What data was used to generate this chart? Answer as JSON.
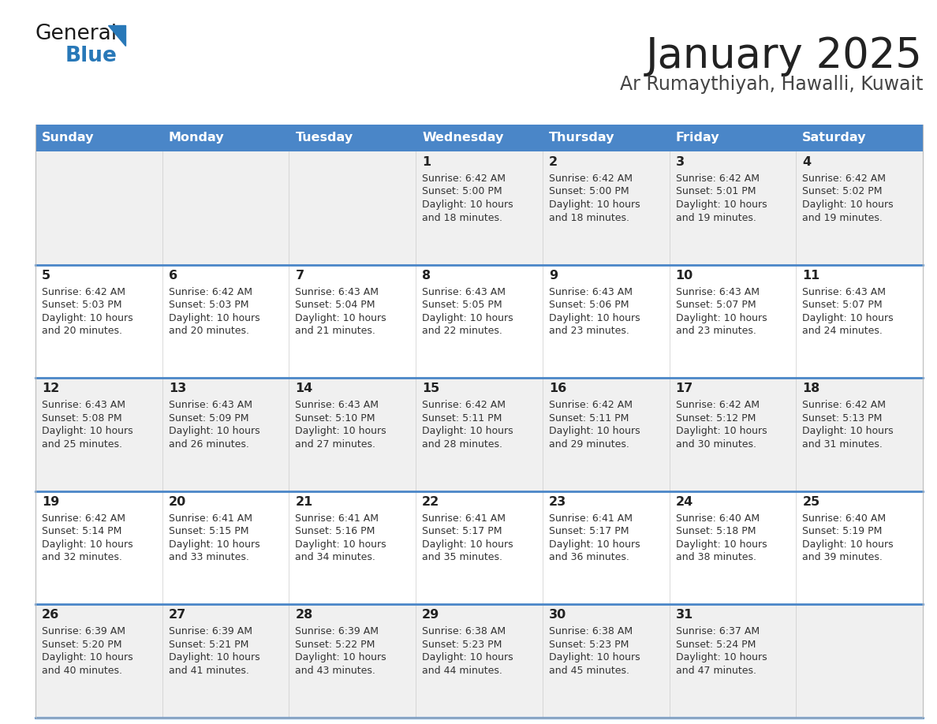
{
  "title": "January 2025",
  "subtitle": "Ar Rumaythiyah, Hawalli, Kuwait",
  "days_of_week": [
    "Sunday",
    "Monday",
    "Tuesday",
    "Wednesday",
    "Thursday",
    "Friday",
    "Saturday"
  ],
  "header_bg": "#4a86c8",
  "header_text": "#ffffff",
  "cell_bg_light": "#f0f0f0",
  "cell_bg_white": "#ffffff",
  "cell_border_color": "#4a86c8",
  "text_color": "#333333",
  "number_color": "#222222",
  "title_color": "#222222",
  "subtitle_color": "#444444",
  "logo_general_color": "#1a1a1a",
  "logo_blue_color": "#2878b8",
  "calendar_data": [
    {
      "day": 1,
      "col": 3,
      "row": 0,
      "sunrise": "6:42 AM",
      "sunset": "5:00 PM",
      "daylight_line1": "Daylight: 10 hours",
      "daylight_line2": "and 18 minutes."
    },
    {
      "day": 2,
      "col": 4,
      "row": 0,
      "sunrise": "6:42 AM",
      "sunset": "5:00 PM",
      "daylight_line1": "Daylight: 10 hours",
      "daylight_line2": "and 18 minutes."
    },
    {
      "day": 3,
      "col": 5,
      "row": 0,
      "sunrise": "6:42 AM",
      "sunset": "5:01 PM",
      "daylight_line1": "Daylight: 10 hours",
      "daylight_line2": "and 19 minutes."
    },
    {
      "day": 4,
      "col": 6,
      "row": 0,
      "sunrise": "6:42 AM",
      "sunset": "5:02 PM",
      "daylight_line1": "Daylight: 10 hours",
      "daylight_line2": "and 19 minutes."
    },
    {
      "day": 5,
      "col": 0,
      "row": 1,
      "sunrise": "6:42 AM",
      "sunset": "5:03 PM",
      "daylight_line1": "Daylight: 10 hours",
      "daylight_line2": "and 20 minutes."
    },
    {
      "day": 6,
      "col": 1,
      "row": 1,
      "sunrise": "6:42 AM",
      "sunset": "5:03 PM",
      "daylight_line1": "Daylight: 10 hours",
      "daylight_line2": "and 20 minutes."
    },
    {
      "day": 7,
      "col": 2,
      "row": 1,
      "sunrise": "6:43 AM",
      "sunset": "5:04 PM",
      "daylight_line1": "Daylight: 10 hours",
      "daylight_line2": "and 21 minutes."
    },
    {
      "day": 8,
      "col": 3,
      "row": 1,
      "sunrise": "6:43 AM",
      "sunset": "5:05 PM",
      "daylight_line1": "Daylight: 10 hours",
      "daylight_line2": "and 22 minutes."
    },
    {
      "day": 9,
      "col": 4,
      "row": 1,
      "sunrise": "6:43 AM",
      "sunset": "5:06 PM",
      "daylight_line1": "Daylight: 10 hours",
      "daylight_line2": "and 23 minutes."
    },
    {
      "day": 10,
      "col": 5,
      "row": 1,
      "sunrise": "6:43 AM",
      "sunset": "5:07 PM",
      "daylight_line1": "Daylight: 10 hours",
      "daylight_line2": "and 23 minutes."
    },
    {
      "day": 11,
      "col": 6,
      "row": 1,
      "sunrise": "6:43 AM",
      "sunset": "5:07 PM",
      "daylight_line1": "Daylight: 10 hours",
      "daylight_line2": "and 24 minutes."
    },
    {
      "day": 12,
      "col": 0,
      "row": 2,
      "sunrise": "6:43 AM",
      "sunset": "5:08 PM",
      "daylight_line1": "Daylight: 10 hours",
      "daylight_line2": "and 25 minutes."
    },
    {
      "day": 13,
      "col": 1,
      "row": 2,
      "sunrise": "6:43 AM",
      "sunset": "5:09 PM",
      "daylight_line1": "Daylight: 10 hours",
      "daylight_line2": "and 26 minutes."
    },
    {
      "day": 14,
      "col": 2,
      "row": 2,
      "sunrise": "6:43 AM",
      "sunset": "5:10 PM",
      "daylight_line1": "Daylight: 10 hours",
      "daylight_line2": "and 27 minutes."
    },
    {
      "day": 15,
      "col": 3,
      "row": 2,
      "sunrise": "6:42 AM",
      "sunset": "5:11 PM",
      "daylight_line1": "Daylight: 10 hours",
      "daylight_line2": "and 28 minutes."
    },
    {
      "day": 16,
      "col": 4,
      "row": 2,
      "sunrise": "6:42 AM",
      "sunset": "5:11 PM",
      "daylight_line1": "Daylight: 10 hours",
      "daylight_line2": "and 29 minutes."
    },
    {
      "day": 17,
      "col": 5,
      "row": 2,
      "sunrise": "6:42 AM",
      "sunset": "5:12 PM",
      "daylight_line1": "Daylight: 10 hours",
      "daylight_line2": "and 30 minutes."
    },
    {
      "day": 18,
      "col": 6,
      "row": 2,
      "sunrise": "6:42 AM",
      "sunset": "5:13 PM",
      "daylight_line1": "Daylight: 10 hours",
      "daylight_line2": "and 31 minutes."
    },
    {
      "day": 19,
      "col": 0,
      "row": 3,
      "sunrise": "6:42 AM",
      "sunset": "5:14 PM",
      "daylight_line1": "Daylight: 10 hours",
      "daylight_line2": "and 32 minutes."
    },
    {
      "day": 20,
      "col": 1,
      "row": 3,
      "sunrise": "6:41 AM",
      "sunset": "5:15 PM",
      "daylight_line1": "Daylight: 10 hours",
      "daylight_line2": "and 33 minutes."
    },
    {
      "day": 21,
      "col": 2,
      "row": 3,
      "sunrise": "6:41 AM",
      "sunset": "5:16 PM",
      "daylight_line1": "Daylight: 10 hours",
      "daylight_line2": "and 34 minutes."
    },
    {
      "day": 22,
      "col": 3,
      "row": 3,
      "sunrise": "6:41 AM",
      "sunset": "5:17 PM",
      "daylight_line1": "Daylight: 10 hours",
      "daylight_line2": "and 35 minutes."
    },
    {
      "day": 23,
      "col": 4,
      "row": 3,
      "sunrise": "6:41 AM",
      "sunset": "5:17 PM",
      "daylight_line1": "Daylight: 10 hours",
      "daylight_line2": "and 36 minutes."
    },
    {
      "day": 24,
      "col": 5,
      "row": 3,
      "sunrise": "6:40 AM",
      "sunset": "5:18 PM",
      "daylight_line1": "Daylight: 10 hours",
      "daylight_line2": "and 38 minutes."
    },
    {
      "day": 25,
      "col": 6,
      "row": 3,
      "sunrise": "6:40 AM",
      "sunset": "5:19 PM",
      "daylight_line1": "Daylight: 10 hours",
      "daylight_line2": "and 39 minutes."
    },
    {
      "day": 26,
      "col": 0,
      "row": 4,
      "sunrise": "6:39 AM",
      "sunset": "5:20 PM",
      "daylight_line1": "Daylight: 10 hours",
      "daylight_line2": "and 40 minutes."
    },
    {
      "day": 27,
      "col": 1,
      "row": 4,
      "sunrise": "6:39 AM",
      "sunset": "5:21 PM",
      "daylight_line1": "Daylight: 10 hours",
      "daylight_line2": "and 41 minutes."
    },
    {
      "day": 28,
      "col": 2,
      "row": 4,
      "sunrise": "6:39 AM",
      "sunset": "5:22 PM",
      "daylight_line1": "Daylight: 10 hours",
      "daylight_line2": "and 43 minutes."
    },
    {
      "day": 29,
      "col": 3,
      "row": 4,
      "sunrise": "6:38 AM",
      "sunset": "5:23 PM",
      "daylight_line1": "Daylight: 10 hours",
      "daylight_line2": "and 44 minutes."
    },
    {
      "day": 30,
      "col": 4,
      "row": 4,
      "sunrise": "6:38 AM",
      "sunset": "5:23 PM",
      "daylight_line1": "Daylight: 10 hours",
      "daylight_line2": "and 45 minutes."
    },
    {
      "day": 31,
      "col": 5,
      "row": 4,
      "sunrise": "6:37 AM",
      "sunset": "5:24 PM",
      "daylight_line1": "Daylight: 10 hours",
      "daylight_line2": "and 47 minutes."
    }
  ]
}
